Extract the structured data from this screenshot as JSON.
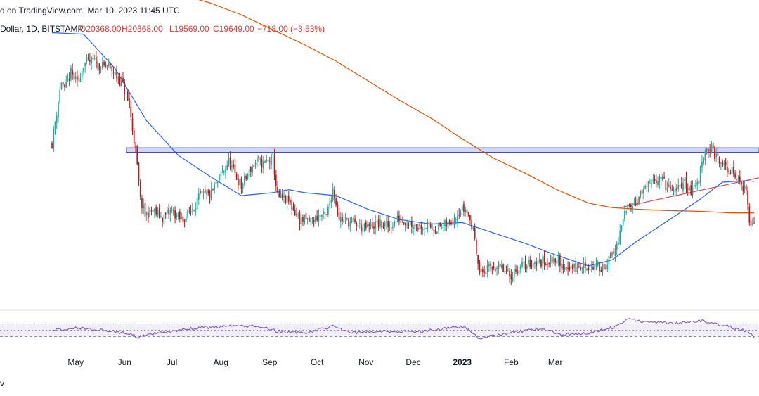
{
  "header": {
    "published": "d on TradingView.com, Mar 10, 2023 11:45 UTC",
    "symbol": "Dollar, 1D, BITSTAMP",
    "open": "O20368.00",
    "high": "H20368.00",
    "low": "L19569.00",
    "close": "C19649.00",
    "change": "−718.00 (−3.53%)"
  },
  "footer_text": "v",
  "colors": {
    "up": "#26a69a",
    "down": "#b71c1c",
    "ma_fast": "#2962ff",
    "ma_slow": "#e65100",
    "rsi": "#7e57c2",
    "trendline": "#f23645",
    "zone_fill": "#c5cae9",
    "zone_border": "#3f51b5"
  },
  "chart_data": {
    "type": "candlestick",
    "series": [
      {
        "name": "price",
        "points": [
          [
            0,
            25000
          ],
          [
            6,
            29200
          ],
          [
            8,
            28500
          ],
          [
            12,
            29700
          ],
          [
            16,
            29000
          ],
          [
            20,
            30300
          ],
          [
            26,
            30500
          ],
          [
            32,
            30100
          ],
          [
            36,
            30200
          ],
          [
            40,
            29600
          ],
          [
            45,
            28900
          ],
          [
            49,
            27400
          ],
          [
            53,
            24500
          ],
          [
            56,
            21200
          ],
          [
            59,
            20200
          ],
          [
            64,
            20500
          ],
          [
            70,
            20000
          ],
          [
            76,
            20500
          ],
          [
            82,
            19800
          ],
          [
            88,
            20500
          ],
          [
            94,
            21500
          ],
          [
            100,
            21500
          ],
          [
            106,
            22600
          ],
          [
            112,
            23800
          ],
          [
            116,
            22900
          ],
          [
            120,
            22100
          ],
          [
            126,
            23300
          ],
          [
            130,
            23800
          ],
          [
            134,
            23600
          ],
          [
            140,
            24000
          ],
          [
            143,
            21400
          ],
          [
            150,
            21100
          ],
          [
            157,
            19900
          ],
          [
            164,
            19800
          ],
          [
            170,
            20200
          ],
          [
            174,
            20100
          ],
          [
            178,
            22000
          ],
          [
            182,
            20000
          ],
          [
            190,
            19700
          ],
          [
            198,
            19300
          ],
          [
            206,
            19600
          ],
          [
            214,
            19400
          ],
          [
            220,
            20000
          ],
          [
            228,
            19600
          ],
          [
            236,
            19500
          ],
          [
            244,
            19300
          ],
          [
            252,
            19600
          ],
          [
            258,
            20500
          ],
          [
            262,
            20600
          ],
          [
            264,
            20200
          ],
          [
            268,
            18800
          ],
          [
            271,
            16300
          ],
          [
            275,
            16500
          ],
          [
            280,
            16800
          ],
          [
            285,
            16600
          ],
          [
            290,
            16100
          ],
          [
            296,
            16700
          ],
          [
            304,
            17000
          ],
          [
            312,
            17100
          ],
          [
            317,
            17200
          ],
          [
            320,
            17400
          ],
          [
            322,
            16700
          ],
          [
            327,
            16800
          ],
          [
            333,
            16600
          ],
          [
            338,
            16800
          ],
          [
            345,
            16700
          ],
          [
            350,
            16800
          ],
          [
            355,
            17400
          ],
          [
            359,
            18500
          ],
          [
            363,
            20200
          ],
          [
            366,
            21100
          ],
          [
            370,
            21000
          ],
          [
            375,
            21900
          ],
          [
            380,
            22200
          ],
          [
            385,
            22900
          ],
          [
            390,
            22000
          ],
          [
            395,
            21700
          ],
          [
            400,
            22500
          ],
          [
            405,
            21800
          ],
          [
            410,
            22500
          ],
          [
            412,
            24000
          ],
          [
            415,
            24700
          ],
          [
            418,
            24600
          ],
          [
            422,
            23900
          ],
          [
            426,
            23400
          ],
          [
            430,
            23200
          ],
          [
            434,
            22700
          ],
          [
            436,
            22300
          ],
          [
            438,
            22100
          ],
          [
            440,
            21900
          ],
          [
            442,
            19700
          ],
          [
            445,
            19649
          ]
        ]
      },
      {
        "name": "ma_fast",
        "points": [
          [
            0,
            32400
          ],
          [
            20,
            32300
          ],
          [
            40,
            30000
          ],
          [
            60,
            26500
          ],
          [
            80,
            24200
          ],
          [
            100,
            22800
          ],
          [
            120,
            21500
          ],
          [
            140,
            21700
          ],
          [
            150,
            21900
          ],
          [
            160,
            21700
          ],
          [
            180,
            21500
          ],
          [
            200,
            20600
          ],
          [
            220,
            19900
          ],
          [
            240,
            19600
          ],
          [
            260,
            19700
          ],
          [
            280,
            19000
          ],
          [
            300,
            18300
          ],
          [
            320,
            17500
          ],
          [
            340,
            16800
          ],
          [
            355,
            17200
          ],
          [
            370,
            18400
          ],
          [
            390,
            19800
          ],
          [
            410,
            21200
          ],
          [
            425,
            22400
          ],
          [
            440,
            22500
          ],
          [
            445,
            22450
          ]
        ]
      },
      {
        "name": "ma_slow",
        "points": [
          [
            60,
            35500
          ],
          [
            80,
            35000
          ],
          [
            100,
            34400
          ],
          [
            120,
            33600
          ],
          [
            140,
            32600
          ],
          [
            160,
            31600
          ],
          [
            180,
            30500
          ],
          [
            200,
            29200
          ],
          [
            220,
            27900
          ],
          [
            240,
            26700
          ],
          [
            260,
            25300
          ],
          [
            280,
            24000
          ],
          [
            300,
            23000
          ],
          [
            320,
            21900
          ],
          [
            340,
            21000
          ],
          [
            355,
            20700
          ],
          [
            370,
            20600
          ],
          [
            390,
            20500
          ],
          [
            410,
            20450
          ],
          [
            430,
            20350
          ],
          [
            445,
            20350
          ]
        ]
      }
    ],
    "resistance_zone": [
      24400,
      24700
    ],
    "trendline": [
      [
        360,
        20700
      ],
      [
        445,
        22700
      ]
    ],
    "rsi": [
      [
        0,
        50
      ],
      [
        15,
        58
      ],
      [
        30,
        52
      ],
      [
        45,
        42
      ],
      [
        55,
        28
      ],
      [
        70,
        44
      ],
      [
        90,
        56
      ],
      [
        110,
        62
      ],
      [
        130,
        64
      ],
      [
        143,
        46
      ],
      [
        160,
        42
      ],
      [
        178,
        62
      ],
      [
        190,
        42
      ],
      [
        210,
        48
      ],
      [
        230,
        44
      ],
      [
        250,
        56
      ],
      [
        262,
        60
      ],
      [
        270,
        25
      ],
      [
        290,
        42
      ],
      [
        310,
        55
      ],
      [
        322,
        36
      ],
      [
        340,
        42
      ],
      [
        355,
        58
      ],
      [
        365,
        86
      ],
      [
        375,
        76
      ],
      [
        395,
        73
      ],
      [
        412,
        80
      ],
      [
        430,
        60
      ],
      [
        440,
        48
      ],
      [
        445,
        28
      ]
    ],
    "rsi_bands": [
      30,
      50,
      70
    ],
    "x_ticks": [
      {
        "x": 15,
        "label": "May"
      },
      {
        "x": 46,
        "label": "Jun"
      },
      {
        "x": 76,
        "label": "Jul"
      },
      {
        "x": 107,
        "label": "Aug"
      },
      {
        "x": 138,
        "label": "Sep"
      },
      {
        "x": 168,
        "label": "Oct"
      },
      {
        "x": 199,
        "label": "Nov"
      },
      {
        "x": 229,
        "label": "Dec"
      },
      {
        "x": 260,
        "label": "2023",
        "bold": true
      },
      {
        "x": 291,
        "label": "Feb"
      },
      {
        "x": 319,
        "label": "Mar"
      }
    ]
  }
}
